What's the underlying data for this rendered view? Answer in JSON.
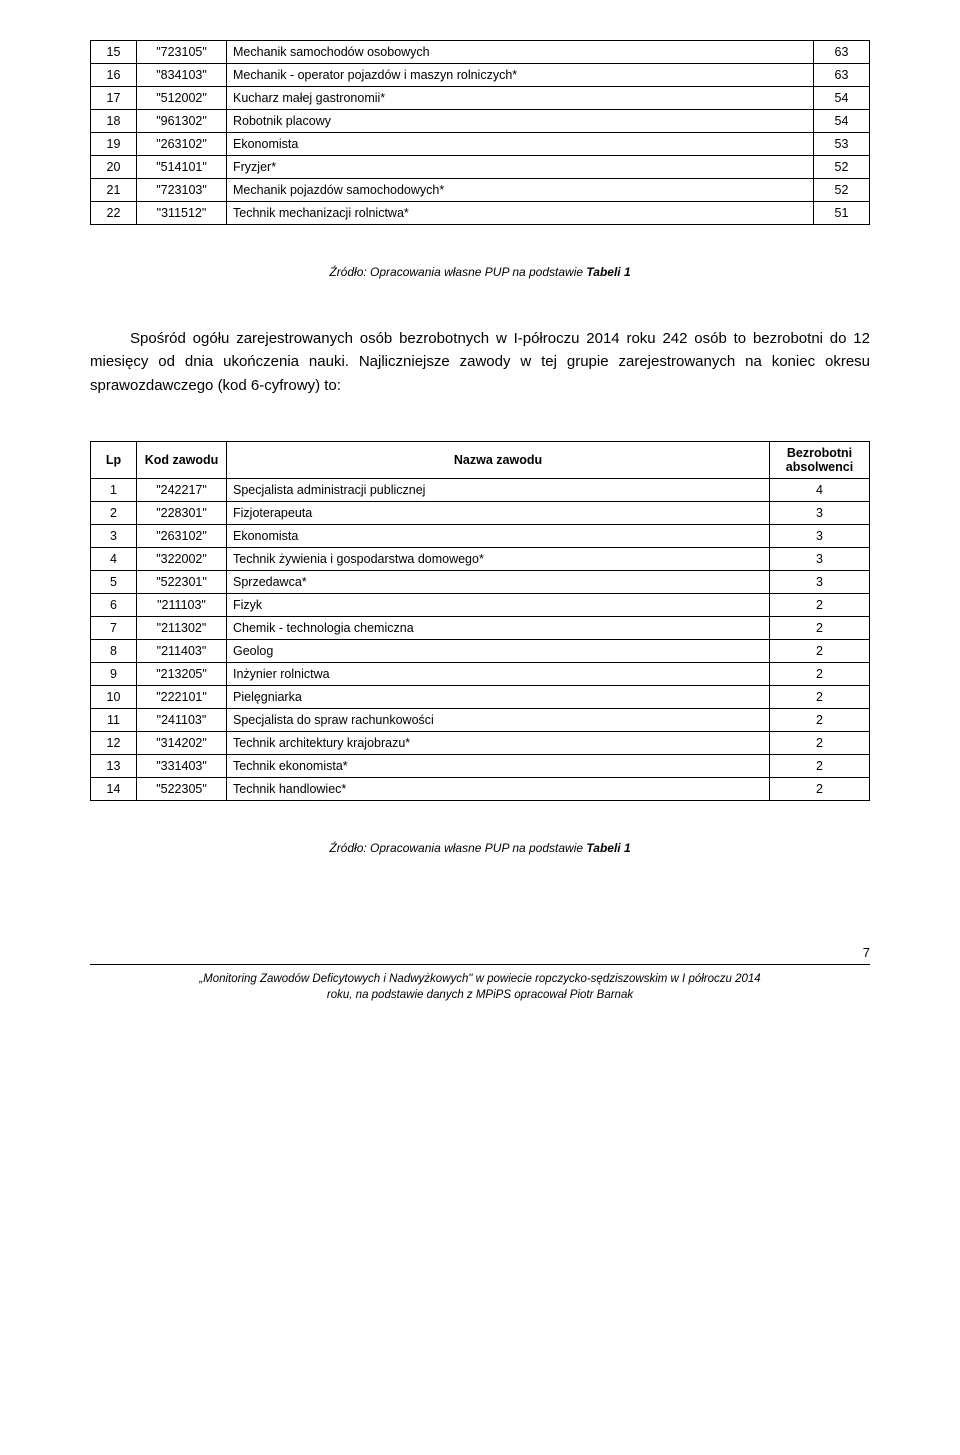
{
  "table1": {
    "rows": [
      {
        "n": "15",
        "code": "\"723105\"",
        "name": "Mechanik samochodów osobowych",
        "count": "63"
      },
      {
        "n": "16",
        "code": "\"834103\"",
        "name": "Mechanik - operator pojazdów i maszyn rolniczych*",
        "count": "63"
      },
      {
        "n": "17",
        "code": "\"512002\"",
        "name": "Kucharz małej gastronomii*",
        "count": "54"
      },
      {
        "n": "18",
        "code": "\"961302\"",
        "name": "Robotnik placowy",
        "count": "54"
      },
      {
        "n": "19",
        "code": "\"263102\"",
        "name": "Ekonomista",
        "count": "53"
      },
      {
        "n": "20",
        "code": "\"514101\"",
        "name": "Fryzjer*",
        "count": "52"
      },
      {
        "n": "21",
        "code": "\"723103\"",
        "name": "Mechanik pojazdów samochodowych*",
        "count": "52"
      },
      {
        "n": "22",
        "code": "\"311512\"",
        "name": "Technik mechanizacji rolnictwa*",
        "count": "51"
      }
    ]
  },
  "source1": {
    "prefix": "Źródło: Opracowania własne PUP na podstawie ",
    "bold": "Tabeli 1"
  },
  "paragraph": "Spośród ogółu zarejestrowanych osób  bezrobotnych w I-półroczu 2014 roku 242 osób to bezrobotni do 12 miesięcy od dnia ukończenia nauki. Najliczniejsze zawody w tej grupie zarejestrowanych na koniec okresu sprawozdawczego (kod 6-cyfrowy) to:",
  "table2": {
    "headers": {
      "lp": "Lp",
      "code": "Kod zawodu",
      "name": "Nazwa zawodu",
      "count": "Bezrobotni absolwenci"
    },
    "rows": [
      {
        "n": "1",
        "code": "\"242217\"",
        "name": "Specjalista administracji publicznej",
        "count": "4"
      },
      {
        "n": "2",
        "code": "\"228301\"",
        "name": "Fizjoterapeuta",
        "count": "3"
      },
      {
        "n": "3",
        "code": "\"263102\"",
        "name": "Ekonomista",
        "count": "3"
      },
      {
        "n": "4",
        "code": "\"322002\"",
        "name": "Technik żywienia i gospodarstwa domowego*",
        "count": "3"
      },
      {
        "n": "5",
        "code": "\"522301\"",
        "name": "Sprzedawca*",
        "count": "3"
      },
      {
        "n": "6",
        "code": "\"211103\"",
        "name": "Fizyk",
        "count": "2"
      },
      {
        "n": "7",
        "code": "\"211302\"",
        "name": "Chemik - technologia chemiczna",
        "count": "2"
      },
      {
        "n": "8",
        "code": "\"211403\"",
        "name": "Geolog",
        "count": "2"
      },
      {
        "n": "9",
        "code": "\"213205\"",
        "name": "Inżynier rolnictwa",
        "count": "2"
      },
      {
        "n": "10",
        "code": "\"222101\"",
        "name": "Pielęgniarka",
        "count": "2"
      },
      {
        "n": "11",
        "code": "\"241103\"",
        "name": "Specjalista do spraw rachunkowości",
        "count": "2"
      },
      {
        "n": "12",
        "code": "\"314202\"",
        "name": "Technik architektury krajobrazu*",
        "count": "2"
      },
      {
        "n": "13",
        "code": "\"331403\"",
        "name": "Technik ekonomista*",
        "count": "2"
      },
      {
        "n": "14",
        "code": "\"522305\"",
        "name": "Technik handlowiec*",
        "count": "2"
      }
    ]
  },
  "source2": {
    "prefix": "Źródło: Opracowania własne PUP na podstawie ",
    "bold": "Tabeli 1"
  },
  "pageNumber": "7",
  "footer": {
    "line1": "„Monitoring Zawodów Deficytowych i Nadwyżkowych\" w powiecie ropczycko-sędziszowskim w I półroczu 2014",
    "line2": "roku, na podstawie danych z MPiPS opracował Piotr Barnak"
  }
}
